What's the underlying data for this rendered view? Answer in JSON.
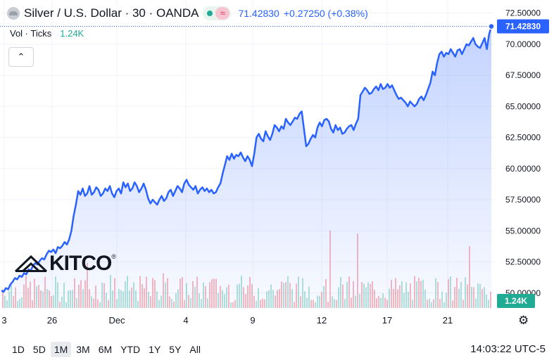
{
  "header": {
    "title": "Silver / U.S. Dollar · 30 · OANDA",
    "last_price": "71.42830",
    "change": "+0.27250 (+0.38%)"
  },
  "volume": {
    "label": "Vol · Ticks",
    "value": "1.24K"
  },
  "logo": {
    "text": "KITCO",
    "mark": "®"
  },
  "ranges": [
    "1D",
    "5D",
    "1M",
    "3M",
    "6M",
    "YTD",
    "1Y",
    "5Y",
    "All"
  ],
  "active_range": "1M",
  "clock": "14:03:22 UTC-5",
  "colors": {
    "line": "#2962ff",
    "up": "#22ab94",
    "down": "#f23645"
  },
  "chart_data": {
    "type": "area",
    "yaxis_ticks": [
      "72.50000",
      "70.00000",
      "67.50000",
      "65.00000",
      "62.50000",
      "60.00000",
      "57.50000",
      "55.00000",
      "52.50000",
      "50.00000"
    ],
    "ylim": [
      48.8,
      73.1
    ],
    "x_labels": [
      "3",
      "26",
      "Dec",
      "4",
      "9",
      "12",
      "17",
      "21"
    ],
    "last_price_label": "71.42830",
    "volume_label": "1.24K",
    "series": [
      {
        "values": [
          50.2,
          50.1,
          50.4,
          50.3,
          50.7,
          50.9,
          51.2,
          51.1,
          51.4,
          51.3,
          51.6,
          51.5,
          51.9,
          51.8,
          52.2,
          52.4,
          52.3,
          52.6,
          52.8,
          52.7,
          53.1,
          53.4,
          53.3,
          53.5,
          53.2,
          53.7,
          53.6,
          53.8,
          54.1,
          53.9,
          54.3,
          55.0,
          56.2,
          57.1,
          58.2,
          57.9,
          58.4,
          57.8,
          58.0,
          58.6,
          57.9,
          58.1,
          58.5,
          58.3,
          57.8,
          58.0,
          58.4,
          58.2,
          58.6,
          58.0,
          57.7,
          58.2,
          58.4,
          58.0,
          58.9,
          58.5,
          58.8,
          58.2,
          58.4,
          58.9,
          58.6,
          58.1,
          58.4,
          58.8,
          58.3,
          57.6,
          57.2,
          57.5,
          57.3,
          57.1,
          57.5,
          57.8,
          57.4,
          57.6,
          58.1,
          58.3,
          57.8,
          58.2,
          58.6,
          58.4,
          58.1,
          58.8,
          59.1,
          58.7,
          58.5,
          58.3,
          58.6,
          58.0,
          58.3,
          58.5,
          58.2,
          58.4,
          58.1,
          58.3,
          58.0,
          58.1,
          58.5,
          58.8,
          59.6,
          60.3,
          61.0,
          60.7,
          61.2,
          60.8,
          61.1,
          61.0,
          61.3,
          60.9,
          60.6,
          61.0,
          60.7,
          60.2,
          61.2,
          62.5,
          62.8,
          62.4,
          62.2,
          63.0,
          62.6,
          62.3,
          62.8,
          63.5,
          63.3,
          63.0,
          63.4,
          63.2,
          64.0,
          63.7,
          63.5,
          63.8,
          64.1,
          64.0,
          64.4,
          64.6,
          63.2,
          61.8,
          62.0,
          62.4,
          62.7,
          62.5,
          63.3,
          63.7,
          63.4,
          63.9,
          64.0,
          63.8,
          63.2,
          62.9,
          63.5,
          63.1,
          63.3,
          62.8,
          62.9,
          63.2,
          63.4,
          63.5,
          63.1,
          63.6,
          64.0,
          65.9,
          66.2,
          66.5,
          66.3,
          66.0,
          66.1,
          66.4,
          66.6,
          66.3,
          66.8,
          66.4,
          66.5,
          66.8,
          66.5,
          66.7,
          66.3,
          65.9,
          65.6,
          65.7,
          65.5,
          65.3,
          65.0,
          65.4,
          65.2,
          65.0,
          65.2,
          65.6,
          65.8,
          65.5,
          65.9,
          66.4,
          66.9,
          67.8,
          67.5,
          68.5,
          69.2,
          69.4,
          69.0,
          69.3,
          69.2,
          69.6,
          69.3,
          69.0,
          69.5,
          69.6,
          69.2,
          69.6,
          70.0,
          69.9,
          70.2,
          70.5,
          70.0,
          69.8,
          69.7,
          70.1,
          70.5,
          69.6,
          70.8,
          71.43
        ]
      }
    ]
  }
}
